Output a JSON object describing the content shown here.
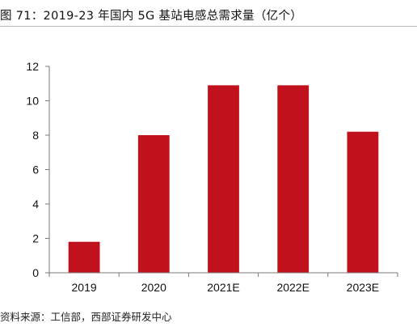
{
  "title": "图 71：2019-23 年国内 5G 基站电感总需求量（亿个）",
  "source": "资料来源：工信部，西部证券研发中心",
  "chart_data": {
    "type": "bar",
    "title": "图 71：2019-23 年国内 5G 基站电感总需求量（亿个）",
    "xlabel": "",
    "ylabel": "",
    "categories": [
      "2019",
      "2020",
      "2021E",
      "2022E",
      "2023E"
    ],
    "values": [
      1.8,
      8.0,
      10.9,
      10.9,
      8.2
    ],
    "ylim": [
      0,
      12
    ],
    "yticks": [
      0,
      2,
      4,
      6,
      8,
      10,
      12
    ],
    "bar_color": "#c0111d",
    "grid": false,
    "legend": "none"
  }
}
